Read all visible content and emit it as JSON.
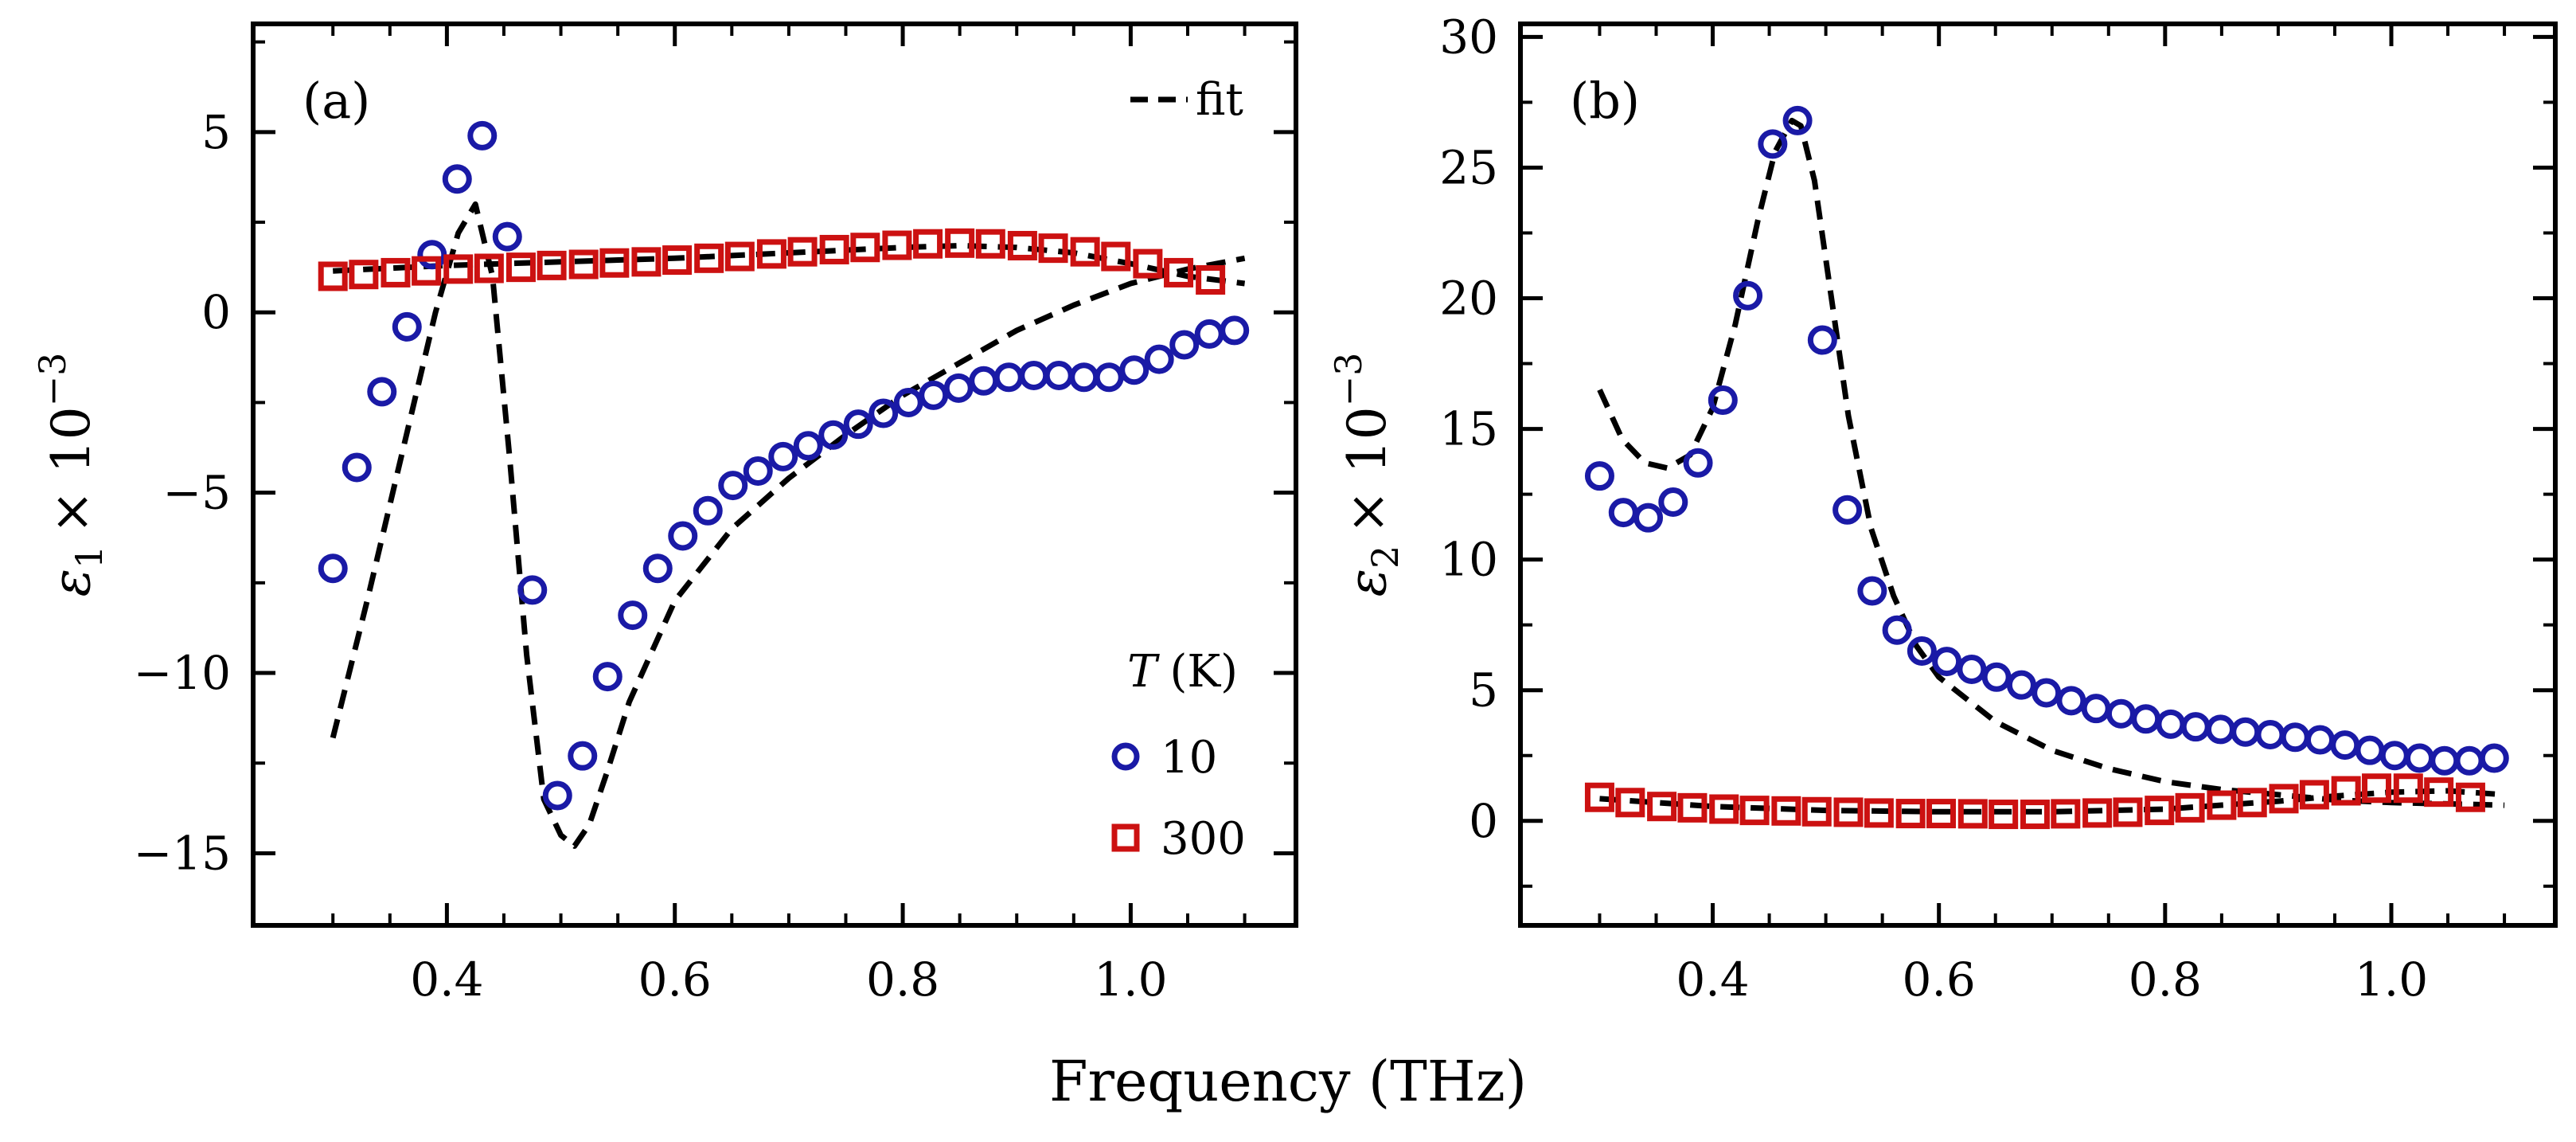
{
  "figure": {
    "xlabel": "Frequency (THz)"
  },
  "chart_data": [
    {
      "type": "scatter",
      "panel_label": "(a)",
      "ylabel_symbol": "ε",
      "ylabel_sub": "1",
      "ylabel_times": "× 10",
      "ylabel_exp": "−3",
      "xlim": [
        0.23,
        1.145
      ],
      "ylim": [
        -17,
        8
      ],
      "xticks": [
        0.4,
        0.6,
        0.8,
        1.0
      ],
      "xtick_labels": [
        "0.4",
        "0.6",
        "0.8",
        "1.0"
      ],
      "yticks": [
        5,
        0,
        -5,
        -10,
        -15
      ],
      "ytick_labels": [
        "5",
        "0",
        "−5",
        "−10",
        "−15"
      ],
      "grid": false,
      "legend": {
        "title_symbol": "T",
        "title_unit": "(K)",
        "fit_label": "fit",
        "placement": "right",
        "entries": [
          "10",
          "300"
        ]
      },
      "series": [
        {
          "name": "10",
          "marker": "circle",
          "color": "#1a1aa6",
          "x": [
            0.3,
            0.321,
            0.343,
            0.365,
            0.387,
            0.409,
            0.431,
            0.453,
            0.475,
            0.497,
            0.519,
            0.541,
            0.563,
            0.585,
            0.607,
            0.629,
            0.651,
            0.673,
            0.695,
            0.717,
            0.739,
            0.761,
            0.783,
            0.805,
            0.827,
            0.849,
            0.871,
            0.893,
            0.915,
            0.937,
            0.959,
            0.981,
            1.003,
            1.025,
            1.047,
            1.069,
            1.091
          ],
          "y": [
            -7.1,
            -4.3,
            -2.2,
            -0.4,
            1.6,
            3.7,
            4.9,
            2.1,
            -7.7,
            -13.4,
            -12.3,
            -10.1,
            -8.4,
            -7.1,
            -6.2,
            -5.5,
            -4.8,
            -4.4,
            -4.0,
            -3.7,
            -3.4,
            -3.1,
            -2.8,
            -2.5,
            -2.3,
            -2.1,
            -1.9,
            -1.8,
            -1.75,
            -1.75,
            -1.8,
            -1.8,
            -1.6,
            -1.3,
            -0.9,
            -0.6,
            -0.5
          ]
        },
        {
          "name": "300",
          "marker": "square",
          "color": "#cc1111",
          "x": [
            0.3,
            0.327,
            0.355,
            0.382,
            0.41,
            0.437,
            0.465,
            0.492,
            0.52,
            0.547,
            0.575,
            0.602,
            0.63,
            0.657,
            0.685,
            0.712,
            0.74,
            0.767,
            0.795,
            0.822,
            0.85,
            0.877,
            0.905,
            0.932,
            0.96,
            0.987,
            1.015,
            1.042,
            1.07
          ],
          "y": [
            1.0,
            1.05,
            1.1,
            1.15,
            1.2,
            1.22,
            1.25,
            1.3,
            1.33,
            1.37,
            1.4,
            1.45,
            1.5,
            1.55,
            1.62,
            1.68,
            1.74,
            1.8,
            1.86,
            1.9,
            1.92,
            1.9,
            1.85,
            1.78,
            1.68,
            1.55,
            1.35,
            1.1,
            0.9
          ]
        },
        {
          "name": "fit",
          "line": "dashed",
          "color": "#000000",
          "x": [
            0.3,
            0.33,
            0.36,
            0.39,
            0.41,
            0.425,
            0.44,
            0.455,
            0.47,
            0.485,
            0.5,
            0.512,
            0.525,
            0.54,
            0.56,
            0.6,
            0.65,
            0.7,
            0.75,
            0.8,
            0.85,
            0.9,
            0.95,
            1.0,
            1.05,
            1.1
          ],
          "y": [
            -11.8,
            -8.0,
            -4.0,
            0.0,
            2.2,
            3.0,
            1.0,
            -4.0,
            -9.5,
            -13.5,
            -14.5,
            -14.8,
            -14.2,
            -12.8,
            -10.8,
            -8.0,
            -6.0,
            -4.6,
            -3.4,
            -2.3,
            -1.4,
            -0.5,
            0.2,
            0.8,
            1.2,
            1.5
          ]
        },
        {
          "name": "fit-300",
          "line": "dashed",
          "color": "#000000",
          "x": [
            0.3,
            0.4,
            0.5,
            0.6,
            0.7,
            0.8,
            0.85,
            0.9,
            0.95,
            1.0,
            1.05,
            1.1
          ],
          "y": [
            1.15,
            1.3,
            1.4,
            1.5,
            1.65,
            1.8,
            1.85,
            1.8,
            1.65,
            1.35,
            1.0,
            0.8
          ]
        }
      ]
    },
    {
      "type": "scatter",
      "panel_label": "(b)",
      "ylabel_symbol": "ε",
      "ylabel_sub": "2",
      "ylabel_times": "× 10",
      "ylabel_exp": "−3",
      "xlim": [
        0.23,
        1.145
      ],
      "ylim": [
        -4,
        30.5
      ],
      "xticks": [
        0.4,
        0.6,
        0.8,
        1.0
      ],
      "xtick_labels": [
        "0.4",
        "0.6",
        "0.8",
        "1.0"
      ],
      "yticks": [
        0,
        5,
        10,
        15,
        20,
        25,
        30
      ],
      "ytick_labels": [
        "0",
        "5",
        "10",
        "15",
        "20",
        "25",
        "30"
      ],
      "grid": false,
      "series": [
        {
          "name": "10",
          "marker": "circle",
          "color": "#1a1aa6",
          "x": [
            0.3,
            0.321,
            0.343,
            0.365,
            0.387,
            0.409,
            0.431,
            0.453,
            0.475,
            0.497,
            0.519,
            0.541,
            0.563,
            0.585,
            0.607,
            0.629,
            0.651,
            0.673,
            0.695,
            0.717,
            0.739,
            0.761,
            0.783,
            0.805,
            0.827,
            0.849,
            0.871,
            0.893,
            0.915,
            0.937,
            0.959,
            0.981,
            1.003,
            1.025,
            1.047,
            1.069,
            1.091
          ],
          "y": [
            13.2,
            11.8,
            11.6,
            12.2,
            13.7,
            16.1,
            20.1,
            25.9,
            26.8,
            18.4,
            11.9,
            8.8,
            7.3,
            6.5,
            6.1,
            5.8,
            5.5,
            5.2,
            4.9,
            4.6,
            4.3,
            4.1,
            3.9,
            3.7,
            3.6,
            3.5,
            3.4,
            3.3,
            3.2,
            3.1,
            2.9,
            2.7,
            2.5,
            2.4,
            2.3,
            2.3,
            2.4
          ]
        },
        {
          "name": "300",
          "marker": "square",
          "color": "#cc1111",
          "x": [
            0.3,
            0.327,
            0.355,
            0.382,
            0.41,
            0.437,
            0.465,
            0.492,
            0.52,
            0.547,
            0.575,
            0.602,
            0.63,
            0.657,
            0.685,
            0.712,
            0.74,
            0.767,
            0.795,
            0.822,
            0.85,
            0.877,
            0.905,
            0.932,
            0.96,
            0.987,
            1.015,
            1.042,
            1.07
          ],
          "y": [
            0.9,
            0.7,
            0.55,
            0.5,
            0.45,
            0.4,
            0.38,
            0.35,
            0.33,
            0.3,
            0.28,
            0.28,
            0.27,
            0.25,
            0.25,
            0.27,
            0.3,
            0.33,
            0.4,
            0.5,
            0.6,
            0.7,
            0.85,
            1.0,
            1.15,
            1.25,
            1.25,
            1.1,
            0.9
          ]
        },
        {
          "name": "fit",
          "line": "dashed",
          "color": "#000000",
          "x": [
            0.3,
            0.32,
            0.34,
            0.36,
            0.38,
            0.4,
            0.42,
            0.44,
            0.455,
            0.47,
            0.478,
            0.49,
            0.5,
            0.52,
            0.54,
            0.56,
            0.58,
            0.6,
            0.65,
            0.7,
            0.75,
            0.8,
            0.85,
            0.9,
            0.95,
            1.0,
            1.05,
            1.1
          ],
          "y": [
            16.5,
            14.6,
            13.7,
            13.5,
            14.0,
            15.8,
            19.0,
            23.0,
            25.6,
            26.8,
            26.6,
            24.5,
            21.5,
            15.5,
            11.2,
            8.6,
            6.7,
            5.5,
            3.8,
            2.7,
            2.0,
            1.5,
            1.2,
            1.0,
            0.8,
            0.7,
            0.65,
            0.6
          ]
        },
        {
          "name": "fit-300",
          "line": "dashed",
          "color": "#000000",
          "x": [
            0.3,
            0.4,
            0.5,
            0.6,
            0.7,
            0.8,
            0.9,
            0.95,
            1.0,
            1.05,
            1.1
          ],
          "y": [
            0.85,
            0.55,
            0.4,
            0.35,
            0.35,
            0.45,
            0.75,
            0.95,
            1.1,
            1.15,
            1.0
          ]
        }
      ]
    }
  ]
}
